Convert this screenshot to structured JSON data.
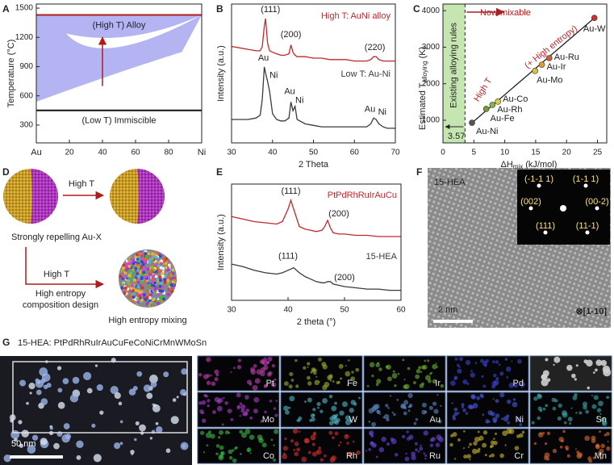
{
  "chart_data": [
    {
      "type": "phase_diagram",
      "panel_label": "A",
      "ylabel": "Temperature (°C)",
      "xlim": [
        0,
        100
      ],
      "xticks": [
        {
          "value": 0,
          "label": "Au"
        },
        20,
        40,
        60,
        80,
        {
          "value": 100,
          "label": "Ni"
        }
      ],
      "ylim": [
        117,
        1542
      ],
      "yticks": [
        300,
        600,
        900,
        1200,
        1500
      ],
      "fill_color": "#b4b4f2",
      "lines": [
        {
          "name": "(High T) Alloy",
          "value": 1430,
          "color": "#b01c1c"
        },
        {
          "name": "(Low T) Immiscible",
          "value": 450,
          "color": "#111111"
        }
      ]
    },
    {
      "type": "line",
      "panel_label": "B",
      "xlabel": "2 Theta",
      "ylabel": "Intensity (a.u.)",
      "xlim": [
        30,
        70
      ],
      "xticks": [
        30,
        40,
        50,
        60,
        70
      ],
      "ylim": [
        1,
        10.5
      ],
      "x": [
        30,
        32,
        34,
        36,
        37,
        37.5,
        38,
        38.3,
        38.8,
        39.3,
        40,
        41,
        42,
        43,
        44,
        44.5,
        45,
        45.5,
        46,
        48,
        50,
        52,
        54,
        56,
        58,
        60,
        62,
        63,
        64,
        64.7,
        65.3,
        66,
        67,
        68,
        70
      ],
      "series": [
        {
          "name": "High T: AuNi alloy",
          "color": "#c0282d",
          "values": [
            7.6,
            7.5,
            7.4,
            7.3,
            7.3,
            7.6,
            9.0,
            9.5,
            7.8,
            7.3,
            7.2,
            7.1,
            7.0,
            7.0,
            7.1,
            7.7,
            7.2,
            7.0,
            6.9,
            6.9,
            6.8,
            6.8,
            6.7,
            6.7,
            6.7,
            6.6,
            6.6,
            6.6,
            6.7,
            6.9,
            6.9,
            6.7,
            6.6,
            6.6,
            6.6
          ]
        },
        {
          "name": "Low T: Au-Ni",
          "color": "#3a3a3a",
          "values": [
            2.6,
            2.6,
            2.6,
            2.7,
            2.9,
            4.0,
            6.2,
            5.8,
            5.2,
            4.5,
            3.0,
            2.6,
            2.5,
            2.5,
            2.7,
            3.8,
            3.2,
            3.5,
            2.6,
            2.3,
            2.2,
            2.1,
            2.1,
            2.1,
            2.1,
            2.1,
            2.1,
            2.1,
            2.3,
            2.7,
            2.6,
            2.3,
            2.1,
            2.0,
            2.0
          ]
        }
      ],
      "annotations": [
        {
          "text": "(111)",
          "x": 39.5,
          "y": 10.1
        },
        {
          "text": "(200)",
          "x": 44.5,
          "y": 8.4
        },
        {
          "text": "(220)",
          "x": 65,
          "y": 7.5
        },
        {
          "text": "Au",
          "x": 37.8,
          "y": 6.8
        },
        {
          "text": "Ni",
          "x": 40.3,
          "y": 5.6
        },
        {
          "text": "Au",
          "x": 44.2,
          "y": 4.5
        },
        {
          "text": "Ni",
          "x": 46.6,
          "y": 3.9
        },
        {
          "text": "Au",
          "x": 63.8,
          "y": 3.3
        },
        {
          "text": "Ni",
          "x": 66.8,
          "y": 3.1
        }
      ]
    },
    {
      "type": "scatter",
      "panel_label": "C",
      "xlabel": {
        "main": "ΔH",
        "sub": "mix",
        "unit": "(kJ/mol)"
      },
      "ylabel": {
        "main": "Estimated T",
        "sub": "alloying",
        "unit": "(K)"
      },
      "xlim": [
        0,
        26.5
      ],
      "xticks": [
        0,
        5,
        10,
        15,
        20,
        25
      ],
      "ylim": [
        380,
        4180
      ],
      "yticks": [
        1000,
        2000,
        3000,
        4000
      ],
      "x": [
        4.7,
        7,
        8,
        8.9,
        14.9,
        16,
        17.2,
        24.5
      ],
      "values": [
        930,
        1310,
        1420,
        1510,
        2350,
        2520,
        2700,
        3800
      ],
      "names": [
        "Au-Ni",
        "Au-Fe",
        "Au-Rh",
        "Au-Co",
        "Au-Mo",
        "Au-Ir",
        "Au-Ru",
        "Au-W"
      ],
      "colors": [
        "#555555",
        "#7a9a3a",
        "#8fb04a",
        "#d8d040",
        "#e0c040",
        "#e09a30",
        "#c9603a",
        "#d03030"
      ],
      "threshold": 3.57,
      "band_color": "#c5e6b0",
      "band_label": "Existing alloying rules",
      "annotations": [
        {
          "text": "Now mixable",
          "x": 6,
          "y": 3930,
          "color": "#b01c1c"
        },
        {
          "text": "(+ High entropy)",
          "x": 17.5,
          "y": 3000,
          "color": "#c0282d"
        },
        {
          "text": "High T",
          "x": 6.5,
          "y": 1830,
          "color": "#c0282d"
        }
      ]
    },
    {
      "type": "line",
      "panel_label": "E",
      "xlabel": "2 theta (°)",
      "ylabel": "Intensity (a.u.)",
      "xlim": [
        30,
        60
      ],
      "xticks": [
        30,
        40,
        50,
        60
      ],
      "ylim": [
        1.5,
        10.8
      ],
      "x": [
        30,
        32,
        34,
        36,
        38,
        39,
        40,
        40.5,
        41,
        42,
        43,
        44,
        45,
        46,
        46.5,
        47,
        47.5,
        48,
        49,
        50,
        52,
        54,
        56,
        58,
        60
      ],
      "series": [
        {
          "name": "PtPdRhRuIrAuCu",
          "color": "#c0282d",
          "values": [
            8.2,
            8.0,
            7.8,
            7.7,
            7.6,
            7.8,
            8.8,
            9.5,
            8.8,
            7.4,
            7.2,
            7.1,
            7.0,
            7.1,
            7.4,
            7.9,
            7.3,
            6.9,
            6.8,
            6.8,
            6.7,
            6.7,
            6.6,
            6.6,
            6.6
          ]
        },
        {
          "name": "15-HEA",
          "color": "#3a3a3a",
          "values": [
            4.4,
            4.2,
            3.9,
            3.7,
            3.6,
            3.7,
            3.9,
            4.0,
            4.1,
            3.7,
            3.4,
            3.2,
            3.0,
            2.9,
            2.9,
            3.0,
            3.0,
            2.8,
            2.7,
            2.6,
            2.5,
            2.4,
            2.4,
            2.3,
            2.3
          ]
        }
      ],
      "annotations": [
        {
          "text": "(111)",
          "x": 40.5,
          "y": 10.2
        },
        {
          "text": "(200)",
          "x": 49,
          "y": 8.4
        },
        {
          "text": "(111)",
          "x": 40,
          "y": 5.0
        },
        {
          "text": "(200)",
          "x": 50,
          "y": 3.3
        }
      ]
    }
  ],
  "panel_d": {
    "label": "D",
    "arrow_top": "High T",
    "caption_left": "Strongly repelling Au-X",
    "arrow_bottom": "High T",
    "design": [
      "High entropy",
      "composition design"
    ],
    "caption_right": "High entropy mixing"
  },
  "panel_f": {
    "label": "F",
    "sample": "15-HEA",
    "scale": "2 nm",
    "zone": "⊗[1-10]",
    "spots": [
      "(-1-1 1)",
      "(1-1 1)",
      "(002)",
      "(00-2)",
      "(111)",
      "(11-1)"
    ]
  },
  "panel_g": {
    "label": "G",
    "title": "15-HEA: PtPdRhRuIrAuCuFeCoNiCrMnWMoSn",
    "scale": "50 nm",
    "maps": [
      {
        "element": "Pt",
        "color": "#c23fb0"
      },
      {
        "element": "Fe",
        "color": "#9ab030"
      },
      {
        "element": "Ir",
        "color": "#70b030"
      },
      {
        "element": "Pd",
        "color": "#3b45d0"
      },
      {
        "element": "Mo",
        "color": "#a83ec8"
      },
      {
        "element": "W",
        "color": "#50b8c8"
      },
      {
        "element": "Au",
        "color": "#5a8ac0"
      },
      {
        "element": "Ni",
        "color": "#4a58e0"
      },
      {
        "element": "Sn",
        "color": "#40a8a8"
      },
      {
        "element": "Co",
        "color": "#40b848"
      },
      {
        "element": "Rh",
        "color": "#d83030"
      },
      {
        "element": "Ru",
        "color": "#6a48d8"
      },
      {
        "element": "Cr",
        "color": "#c8b830"
      },
      {
        "element": "Mn",
        "color": "#d86a30"
      }
    ]
  }
}
